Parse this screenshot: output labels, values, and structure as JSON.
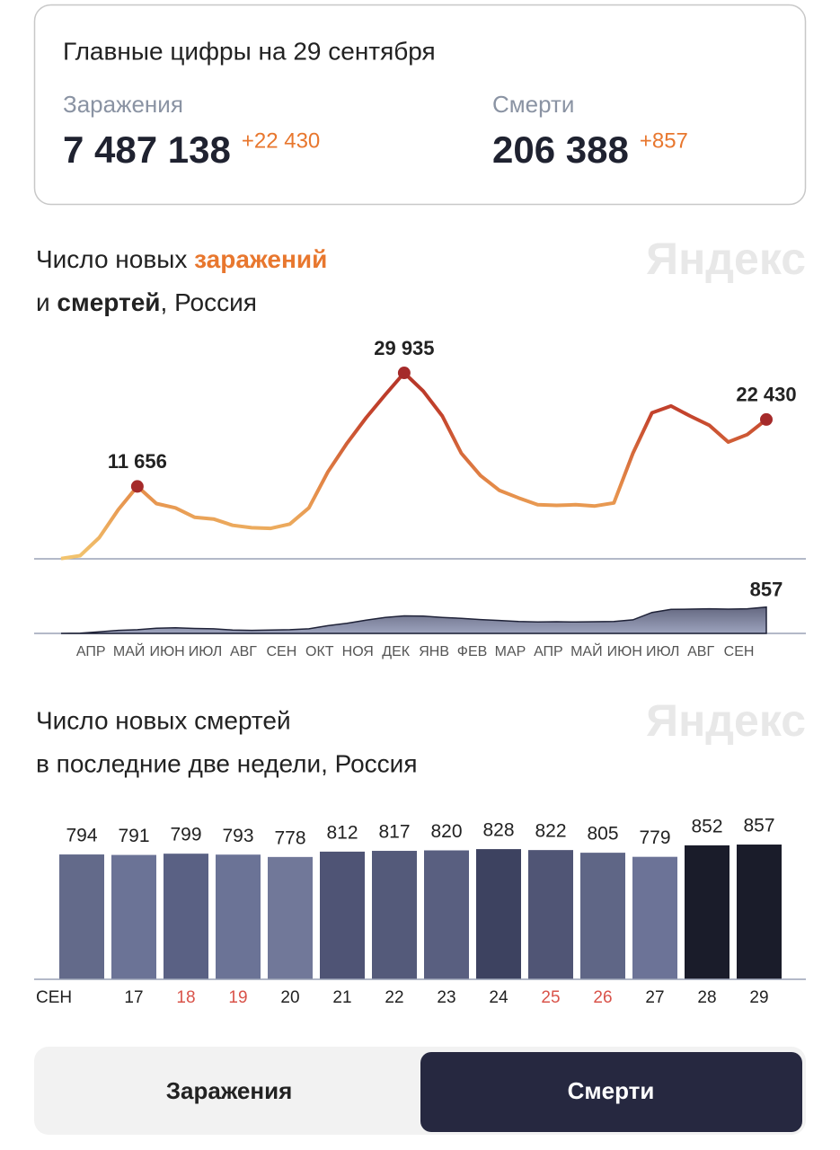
{
  "summary": {
    "title": "Главные цифры на 29 сентября",
    "items": [
      {
        "label": "Заражения",
        "value": "7 487 138",
        "delta": "+22 430"
      },
      {
        "label": "Смерти",
        "value": "206 388",
        "delta": "+857"
      }
    ]
  },
  "watermark": "Яндекс",
  "chart_data": [
    {
      "type": "line",
      "title_parts": [
        "Число новых ",
        "заражений",
        "и ",
        "смертей",
        ", Россия"
      ],
      "categories": [
        null,
        "АПР",
        null,
        "МАЙ",
        null,
        "ИЮН",
        null,
        "ИЮЛ",
        null,
        "АВГ",
        null,
        "СЕН",
        null,
        "ОКТ",
        null,
        "НОЯ",
        null,
        "ДЕК",
        null,
        "ЯНВ",
        null,
        "ФЕВ",
        null,
        "МАР",
        null,
        "АПР",
        null,
        "МАЙ",
        null,
        "ИЮН",
        null,
        "ИЮЛ",
        null,
        "АВГ",
        null,
        "СЕН",
        null,
        null
      ],
      "series": [
        {
          "name": "заражений",
          "colors": [
            "#f2c46e",
            "#e48a48",
            "#c4432c",
            "#a82a25"
          ],
          "values": [
            50,
            500,
            3400,
            7900,
            11656,
            8900,
            8200,
            6700,
            6400,
            5400,
            5000,
            4900,
            5600,
            8200,
            14000,
            18600,
            22700,
            26400,
            29935,
            27000,
            23000,
            17000,
            13400,
            11000,
            9800,
            8700,
            8600,
            8700,
            8500,
            9000,
            17000,
            23500,
            24600,
            23000,
            21500,
            18800,
            20000,
            22430
          ],
          "value_labels": [
            null,
            null,
            null,
            null,
            "11 656",
            null,
            null,
            null,
            null,
            null,
            null,
            null,
            null,
            null,
            null,
            null,
            null,
            null,
            "29 935",
            null,
            null,
            null,
            null,
            null,
            null,
            null,
            null,
            null,
            null,
            null,
            null,
            null,
            null,
            null,
            null,
            null,
            null,
            "22 430"
          ]
        },
        {
          "name": "смертей",
          "axis": "y2",
          "colors": [
            "#1f2238",
            "#9da3bd"
          ],
          "values": [
            0,
            10,
            50,
            100,
            120,
            170,
            180,
            160,
            150,
            110,
            100,
            110,
            120,
            150,
            250,
            330,
            430,
            520,
            570,
            560,
            520,
            490,
            450,
            420,
            390,
            370,
            380,
            370,
            380,
            390,
            440,
            680,
            780,
            790,
            800,
            790,
            800,
            857
          ]
        }
      ],
      "ylim": [
        0,
        35000
      ],
      "y2lim": [
        0,
        1900
      ]
    },
    {
      "type": "bar",
      "title_lines": [
        "Число новых смертей",
        "в последние две недели, Россия"
      ],
      "xlabel": "СЕН",
      "categories": [
        null,
        "17",
        "18",
        "19",
        "20",
        "21",
        "22",
        "23",
        "24",
        "25",
        "26",
        "27",
        "28",
        "29"
      ],
      "label_colors": [
        "#222222",
        "#222222",
        "#d9534a",
        "#d9534a",
        "#222222",
        "#222222",
        "#222222",
        "#222222",
        "#222222",
        "#d9534a",
        "#d9534a",
        "#222222",
        "#222222",
        "#222222"
      ],
      "values": [
        794,
        791,
        799,
        793,
        778,
        812,
        817,
        820,
        828,
        822,
        805,
        779,
        852,
        857
      ],
      "colors": [
        "#636a8a",
        "#6b7396",
        "#5a6184",
        "#6b7396",
        "#717899",
        "#4f5475",
        "#545a7a",
        "#595f80",
        "#3d4260",
        "#505575",
        "#5f6686",
        "#6c7397",
        "#1a1c2a",
        "#1a1c2a"
      ],
      "ylim": [
        0,
        1100
      ]
    }
  ],
  "tabs": [
    {
      "label": "Заражения",
      "active": false
    },
    {
      "label": "Смерти",
      "active": true
    }
  ]
}
